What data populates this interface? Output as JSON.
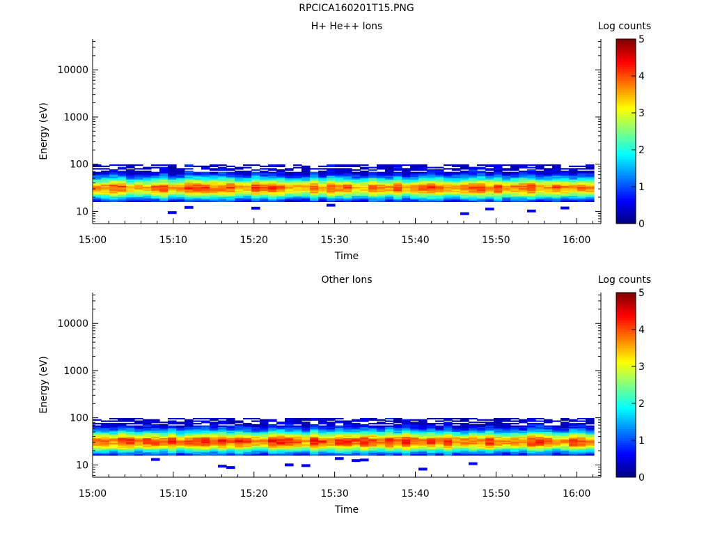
{
  "figure_title": "RPCICA160201T15.PNG",
  "colors": {
    "colormap": [
      "#00007f",
      "#0000ff",
      "#007fff",
      "#00ffff",
      "#7fff7f",
      "#ffff00",
      "#ff7f00",
      "#ff0000",
      "#7f0000"
    ]
  },
  "chart_data": [
    {
      "type": "heatmap",
      "title": "H+ He++ Ions",
      "xlabel": "Time",
      "ylabel": "Energy (eV)",
      "colorbar_label": "Log counts",
      "x_ticks": [
        "15:00",
        "15:10",
        "15:20",
        "15:30",
        "15:40",
        "15:50",
        "16:00"
      ],
      "xlim": [
        "15:00",
        "16:03"
      ],
      "y_scale": "log",
      "ylim": [
        5.5,
        45000
      ],
      "y_ticks": [
        10,
        100,
        1000,
        10000
      ],
      "color_range": [
        0,
        5
      ],
      "colorbar_ticks": [
        0,
        1,
        2,
        3,
        4,
        5
      ],
      "populated_energy_range_eV": [
        16,
        95
      ],
      "peak_energy_eV": 30,
      "peak_log_counts": 3.7
    },
    {
      "type": "heatmap",
      "title": "Other Ions",
      "xlabel": "Time",
      "ylabel": "Energy (eV)",
      "colorbar_label": "Log counts",
      "x_ticks": [
        "15:00",
        "15:10",
        "15:20",
        "15:30",
        "15:40",
        "15:50",
        "16:00"
      ],
      "xlim": [
        "15:00",
        "16:03"
      ],
      "y_scale": "log",
      "ylim": [
        5.5,
        45000
      ],
      "y_ticks": [
        10,
        100,
        1000,
        10000
      ],
      "color_range": [
        0,
        5
      ],
      "colorbar_ticks": [
        0,
        1,
        2,
        3,
        4,
        5
      ],
      "populated_energy_range_eV": [
        16,
        95
      ],
      "peak_energy_eV": 30,
      "peak_log_counts": 3.9
    }
  ]
}
